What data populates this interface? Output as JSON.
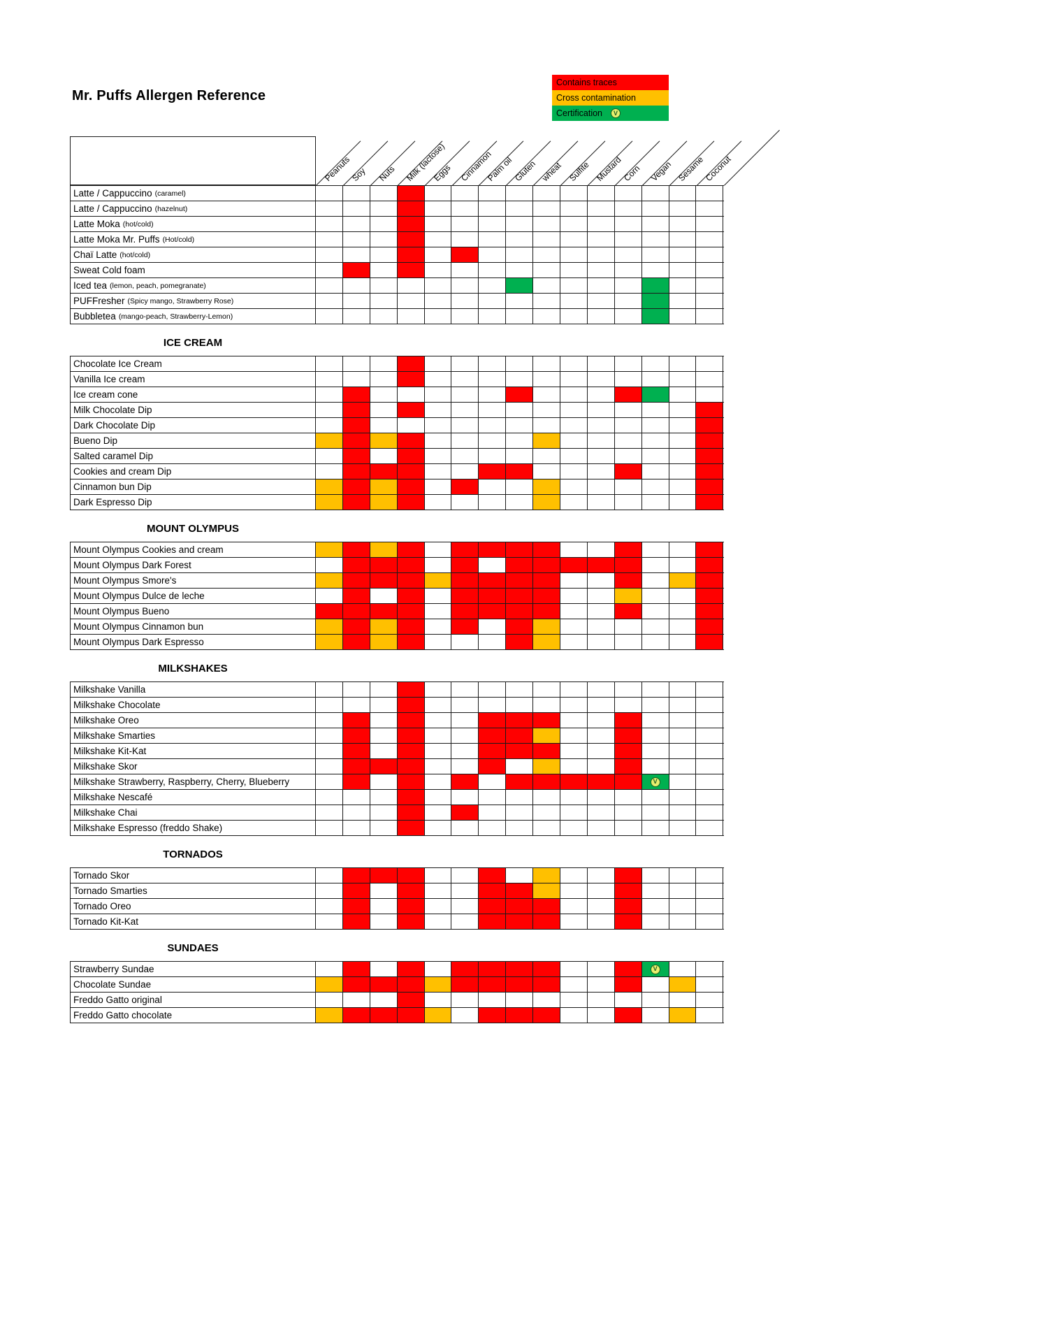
{
  "title": "Mr. Puffs Allergen Reference",
  "legend": {
    "items": [
      {
        "label": "Contains traces",
        "color": "#FF0000",
        "code": "R"
      },
      {
        "label": "Cross contamination",
        "color": "#FFC000",
        "code": "O"
      },
      {
        "label": "Certification",
        "color": "#00B050",
        "code": "G",
        "icon": "vegan-cert-badge"
      }
    ]
  },
  "icons": {
    "vegan_badge_glyph": "V"
  },
  "columns": [
    "Peanuts",
    "Soy",
    "Nuts",
    "Milk (lactose)",
    "Eggs",
    "Cinnamon",
    "Palm oil",
    "Gluten",
    "wheat",
    "Sulfite",
    "Mustard",
    "Corn",
    "Vegan",
    "Sesame",
    "Coconut"
  ],
  "cell_codes": {
    "R": "contains_traces",
    "O": "cross_contamination",
    "G": "certification",
    "V": "certification_with_vegan_logo"
  },
  "sections": [
    {
      "title": "",
      "rows": [
        {
          "name": "Latte / Cappuccino",
          "note": "(caramel)",
          "cells": [
            "",
            "",
            "",
            "R",
            "",
            "",
            "",
            "",
            "",
            "",
            "",
            "",
            "",
            "",
            ""
          ]
        },
        {
          "name": "Latte / Cappuccino",
          "note": "(hazelnut)",
          "cells": [
            "",
            "",
            "",
            "R",
            "",
            "",
            "",
            "",
            "",
            "",
            "",
            "",
            "",
            "",
            ""
          ]
        },
        {
          "name": "Latte Moka",
          "note": "(hot/cold)",
          "cells": [
            "",
            "",
            "",
            "R",
            "",
            "",
            "",
            "",
            "",
            "",
            "",
            "",
            "",
            "",
            ""
          ]
        },
        {
          "name": "Latte Moka Mr. Puffs",
          "note": "(Hot/cold)",
          "cells": [
            "",
            "",
            "",
            "R",
            "",
            "",
            "",
            "",
            "",
            "",
            "",
            "",
            "",
            "",
            ""
          ]
        },
        {
          "name": "Chaï Latte",
          "note": "(hot/cold)",
          "cells": [
            "",
            "",
            "",
            "R",
            "",
            "R",
            "",
            "",
            "",
            "",
            "",
            "",
            "",
            "",
            ""
          ]
        },
        {
          "name": "Sweat Cold foam",
          "cells": [
            "",
            "R",
            "",
            "R",
            "",
            "",
            "",
            "",
            "",
            "",
            "",
            "",
            "",
            "",
            ""
          ]
        },
        {
          "name": "Iced tea",
          "note": "(lemon, peach, pomegranate)",
          "cells": [
            "",
            "",
            "",
            "",
            "",
            "",
            "",
            "G",
            "",
            "",
            "",
            "",
            "G",
            "",
            ""
          ]
        },
        {
          "name": "PUFFresher",
          "note": "(Spicy mango, Strawberry Rose)",
          "cells": [
            "",
            "",
            "",
            "",
            "",
            "",
            "",
            "",
            "",
            "",
            "",
            "",
            "G",
            "",
            ""
          ]
        },
        {
          "name": "Bubbletea",
          "note": "(mango-peach, Strawberry-Lemon)",
          "cells": [
            "",
            "",
            "",
            "",
            "",
            "",
            "",
            "",
            "",
            "",
            "",
            "",
            "G",
            "",
            ""
          ]
        }
      ]
    },
    {
      "title": "ICE CREAM",
      "rows": [
        {
          "name": "Chocolate Ice Cream",
          "cells": [
            "",
            "",
            "",
            "R",
            "",
            "",
            "",
            "",
            "",
            "",
            "",
            "",
            "",
            "",
            ""
          ]
        },
        {
          "name": "Vanilla Ice cream",
          "cells": [
            "",
            "",
            "",
            "R",
            "",
            "",
            "",
            "",
            "",
            "",
            "",
            "",
            "",
            "",
            ""
          ]
        },
        {
          "name": "Ice cream cone",
          "cells": [
            "",
            "R",
            "",
            "",
            "",
            "",
            "",
            "R",
            "",
            "",
            "",
            "R",
            "G",
            "",
            ""
          ]
        },
        {
          "name": "Milk Chocolate Dip",
          "cells": [
            "",
            "R",
            "",
            "R",
            "",
            "",
            "",
            "",
            "",
            "",
            "",
            "",
            "",
            "",
            "R"
          ]
        },
        {
          "name": "Dark Chocolate Dip",
          "cells": [
            "",
            "R",
            "",
            "",
            "",
            "",
            "",
            "",
            "",
            "",
            "",
            "",
            "",
            "",
            "R"
          ]
        },
        {
          "name": "Bueno Dip",
          "cells": [
            "O",
            "R",
            "O",
            "R",
            "",
            "",
            "",
            "",
            "O",
            "",
            "",
            "",
            "",
            "",
            "R"
          ]
        },
        {
          "name": "Salted caramel Dip",
          "cells": [
            "",
            "R",
            "",
            "R",
            "",
            "",
            "",
            "",
            "",
            "",
            "",
            "",
            "",
            "",
            "R"
          ]
        },
        {
          "name": "Cookies and cream Dip",
          "cells": [
            "",
            "R",
            "R",
            "R",
            "",
            "",
            "R",
            "R",
            "",
            "",
            "",
            "R",
            "",
            "",
            "R"
          ]
        },
        {
          "name": "Cinnamon bun Dip",
          "cells": [
            "O",
            "R",
            "O",
            "R",
            "",
            "R",
            "",
            "",
            "O",
            "",
            "",
            "",
            "",
            "",
            "R"
          ]
        },
        {
          "name": "Dark Espresso Dip",
          "cells": [
            "O",
            "R",
            "O",
            "R",
            "",
            "",
            "",
            "",
            "O",
            "",
            "",
            "",
            "",
            "",
            "R"
          ]
        }
      ]
    },
    {
      "title": "MOUNT OLYMPUS",
      "rows": [
        {
          "name": "Mount Olympus Cookies and cream",
          "cells": [
            "O",
            "R",
            "O",
            "R",
            "",
            "R",
            "R",
            "R",
            "R",
            "",
            "",
            "R",
            "",
            "",
            "R"
          ]
        },
        {
          "name": "Mount Olympus Dark Forest",
          "cells": [
            "",
            "R",
            "R",
            "R",
            "",
            "R",
            "",
            "R",
            "R",
            "R",
            "R",
            "R",
            "",
            "",
            "R"
          ]
        },
        {
          "name": "Mount Olympus Smore's",
          "cells": [
            "O",
            "R",
            "R",
            "R",
            "O",
            "R",
            "R",
            "R",
            "R",
            "",
            "",
            "R",
            "",
            "O",
            "R"
          ]
        },
        {
          "name": "Mount Olympus Dulce de leche",
          "cells": [
            "",
            "R",
            "",
            "R",
            "",
            "R",
            "R",
            "R",
            "R",
            "",
            "",
            "O",
            "",
            "",
            "R"
          ]
        },
        {
          "name": "Mount Olympus Bueno",
          "cells": [
            "R",
            "R",
            "R",
            "R",
            "",
            "R",
            "R",
            "R",
            "R",
            "",
            "",
            "R",
            "",
            "",
            "R"
          ]
        },
        {
          "name": "Mount Olympus Cinnamon bun",
          "cells": [
            "O",
            "R",
            "O",
            "R",
            "",
            "R",
            "",
            "R",
            "O",
            "",
            "",
            "",
            "",
            "",
            "R"
          ]
        },
        {
          "name": "Mount Olympus Dark Espresso",
          "cells": [
            "O",
            "R",
            "O",
            "R",
            "",
            "",
            "",
            "R",
            "O",
            "",
            "",
            "",
            "",
            "",
            "R"
          ]
        }
      ]
    },
    {
      "title": "MILKSHAKES",
      "rows": [
        {
          "name": "Milkshake Vanilla",
          "cells": [
            "",
            "",
            "",
            "R",
            "",
            "",
            "",
            "",
            "",
            "",
            "",
            "",
            "",
            "",
            ""
          ]
        },
        {
          "name": "Milkshake Chocolate",
          "cells": [
            "",
            "",
            "",
            "R",
            "",
            "",
            "",
            "",
            "",
            "",
            "",
            "",
            "",
            "",
            ""
          ]
        },
        {
          "name": "Milkshake Oreo",
          "cells": [
            "",
            "R",
            "",
            "R",
            "",
            "",
            "R",
            "R",
            "R",
            "",
            "",
            "R",
            "",
            "",
            ""
          ]
        },
        {
          "name": "Milkshake Smarties",
          "cells": [
            "",
            "R",
            "",
            "R",
            "",
            "",
            "R",
            "R",
            "O",
            "",
            "",
            "R",
            "",
            "",
            ""
          ]
        },
        {
          "name": "Milkshake Kit-Kat",
          "cells": [
            "",
            "R",
            "",
            "R",
            "",
            "",
            "R",
            "R",
            "R",
            "",
            "",
            "R",
            "",
            "",
            ""
          ]
        },
        {
          "name": "Milkshake Skor",
          "cells": [
            "",
            "R",
            "R",
            "R",
            "",
            "",
            "R",
            "",
            "O",
            "",
            "",
            "R",
            "",
            "",
            ""
          ]
        },
        {
          "name": "Milkshake Strawberry, Raspberry, Cherry, Blueberry",
          "cells": [
            "",
            "R",
            "",
            "R",
            "",
            "R",
            "",
            "R",
            "R",
            "R",
            "R",
            "R",
            "V",
            "",
            ""
          ]
        },
        {
          "name": "Milkshake Nescafé",
          "cells": [
            "",
            "",
            "",
            "R",
            "",
            "",
            "",
            "",
            "",
            "",
            "",
            "",
            "",
            "",
            ""
          ]
        },
        {
          "name": "Milkshake Chai",
          "cells": [
            "",
            "",
            "",
            "R",
            "",
            "R",
            "",
            "",
            "",
            "",
            "",
            "",
            "",
            "",
            ""
          ]
        },
        {
          "name": "Milkshake Espresso (freddo Shake)",
          "cells": [
            "",
            "",
            "",
            "R",
            "",
            "",
            "",
            "",
            "",
            "",
            "",
            "",
            "",
            "",
            ""
          ]
        }
      ]
    },
    {
      "title": "TORNADOS",
      "rows": [
        {
          "name": "Tornado Skor",
          "cells": [
            "",
            "R",
            "R",
            "R",
            "",
            "",
            "R",
            "",
            "O",
            "",
            "",
            "R",
            "",
            "",
            ""
          ]
        },
        {
          "name": "Tornado Smarties",
          "cells": [
            "",
            "R",
            "",
            "R",
            "",
            "",
            "R",
            "R",
            "O",
            "",
            "",
            "R",
            "",
            "",
            ""
          ]
        },
        {
          "name": "Tornado Oreo",
          "cells": [
            "",
            "R",
            "",
            "R",
            "",
            "",
            "R",
            "R",
            "R",
            "",
            "",
            "R",
            "",
            "",
            ""
          ]
        },
        {
          "name": "Tornado Kit-Kat",
          "cells": [
            "",
            "R",
            "",
            "R",
            "",
            "",
            "R",
            "R",
            "R",
            "",
            "",
            "R",
            "",
            "",
            ""
          ]
        }
      ]
    },
    {
      "title": "SUNDAES",
      "rows": [
        {
          "name": "Strawberry Sundae",
          "cells": [
            "",
            "R",
            "",
            "R",
            "",
            "R",
            "R",
            "R",
            "R",
            "",
            "",
            "R",
            "V",
            "",
            ""
          ]
        },
        {
          "name": "Chocolate Sundae",
          "cells": [
            "O",
            "R",
            "R",
            "R",
            "O",
            "R",
            "R",
            "R",
            "R",
            "",
            "",
            "R",
            "",
            "O",
            ""
          ]
        },
        {
          "name": "Freddo Gatto original",
          "cells": [
            "",
            "",
            "",
            "R",
            "",
            "",
            "",
            "",
            "",
            "",
            "",
            "",
            "",
            "",
            ""
          ]
        },
        {
          "name": "Freddo Gatto chocolate",
          "cells": [
            "O",
            "R",
            "R",
            "R",
            "O",
            "",
            "R",
            "R",
            "R",
            "",
            "",
            "R",
            "",
            "O",
            ""
          ]
        }
      ]
    }
  ]
}
